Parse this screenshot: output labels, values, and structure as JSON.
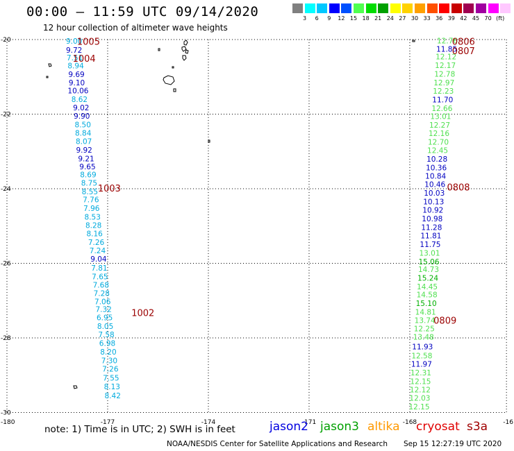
{
  "title": "00:00 – 11:59 UTC 09/14/2020",
  "subtitle": "12 hour collection of altimeter wave heights",
  "legend": {
    "colors": [
      "#808080",
      "#00ffff",
      "#00c8ff",
      "#0000ff",
      "#0050ff",
      "#50ff50",
      "#00dc00",
      "#00a000",
      "#ffff00",
      "#ffd200",
      "#ffa000",
      "#ff5000",
      "#ff0000",
      "#c80000",
      "#a00050",
      "#a000a0",
      "#ff00ff",
      "#ffc8ff"
    ],
    "labels": [
      "3",
      "6",
      "9",
      "12",
      "15",
      "18",
      "21",
      "24",
      "27",
      "30",
      "33",
      "36",
      "39",
      "42",
      "45",
      "70",
      "(ft)"
    ]
  },
  "lat_labels": [
    "-20",
    "-22",
    "-24",
    "-26",
    "-28",
    "-30"
  ],
  "lon_labels": [
    "-180",
    "-177",
    "-174",
    "-171",
    "-168",
    "-16"
  ],
  "tracks": [
    {
      "points": [
        {
          "v": "9.00",
          "lat": -20.04,
          "lon": -178.0,
          "c": "#00aadd"
        },
        {
          "v": "9.72",
          "lat": -20.28,
          "lon": -178.0,
          "c": "#0000c0"
        },
        {
          "v": "7.51",
          "lat": -20.48,
          "lon": -177.98,
          "c": "#00aadd"
        },
        {
          "v": "8.94",
          "lat": -20.7,
          "lon": -177.95,
          "c": "#00aadd"
        },
        {
          "v": "9.69",
          "lat": -20.93,
          "lon": -177.93,
          "c": "#0000c0"
        },
        {
          "v": "9.10",
          "lat": -21.15,
          "lon": -177.92,
          "c": "#0000c0"
        },
        {
          "v": "10.06",
          "lat": -21.37,
          "lon": -177.88,
          "c": "#0000c0"
        },
        {
          "v": "8.62",
          "lat": -21.6,
          "lon": -177.84,
          "c": "#00aadd"
        },
        {
          "v": "9.02",
          "lat": -21.82,
          "lon": -177.79,
          "c": "#0000c0"
        },
        {
          "v": "9.90",
          "lat": -22.05,
          "lon": -177.77,
          "c": "#0000c0"
        },
        {
          "v": "8.50",
          "lat": -22.28,
          "lon": -177.74,
          "c": "#00aadd"
        },
        {
          "v": "8.84",
          "lat": -22.5,
          "lon": -177.73,
          "c": "#00aadd"
        },
        {
          "v": "8.07",
          "lat": -22.73,
          "lon": -177.71,
          "c": "#00aadd"
        },
        {
          "v": "9.92",
          "lat": -22.96,
          "lon": -177.7,
          "c": "#0000c0"
        },
        {
          "v": "9.21",
          "lat": -23.19,
          "lon": -177.64,
          "c": "#0000c0"
        },
        {
          "v": "9.65",
          "lat": -23.4,
          "lon": -177.6,
          "c": "#0000c0"
        },
        {
          "v": "8.69",
          "lat": -23.62,
          "lon": -177.58,
          "c": "#00aadd"
        },
        {
          "v": "8.75",
          "lat": -23.84,
          "lon": -177.55,
          "c": "#00aadd"
        },
        {
          "v": "8.55",
          "lat": -24.07,
          "lon": -177.53,
          "c": "#00aadd"
        },
        {
          "v": "7.76",
          "lat": -24.29,
          "lon": -177.5,
          "c": "#00aadd"
        },
        {
          "v": "7.96",
          "lat": -24.52,
          "lon": -177.48,
          "c": "#00aadd"
        },
        {
          "v": "8.53",
          "lat": -24.75,
          "lon": -177.45,
          "c": "#00aadd"
        },
        {
          "v": "8.28",
          "lat": -24.98,
          "lon": -177.42,
          "c": "#00aadd"
        },
        {
          "v": "8.16",
          "lat": -25.2,
          "lon": -177.39,
          "c": "#00aadd"
        },
        {
          "v": "7.26",
          "lat": -25.43,
          "lon": -177.34,
          "c": "#00aadd"
        },
        {
          "v": "7.24",
          "lat": -25.66,
          "lon": -177.3,
          "c": "#00aadd"
        },
        {
          "v": "9.04",
          "lat": -25.88,
          "lon": -177.27,
          "c": "#0000c0"
        },
        {
          "v": "7.81",
          "lat": -26.12,
          "lon": -177.25,
          "c": "#00aadd"
        },
        {
          "v": "7.65",
          "lat": -26.35,
          "lon": -177.23,
          "c": "#00aadd"
        },
        {
          "v": "7.68",
          "lat": -26.58,
          "lon": -177.2,
          "c": "#00aadd"
        },
        {
          "v": "7.28",
          "lat": -26.8,
          "lon": -177.18,
          "c": "#00aadd"
        },
        {
          "v": "7.06",
          "lat": -27.02,
          "lon": -177.15,
          "c": "#00aadd"
        },
        {
          "v": "7.32",
          "lat": -27.23,
          "lon": -177.12,
          "c": "#00aadd"
        },
        {
          "v": "6.95",
          "lat": -27.45,
          "lon": -177.09,
          "c": "#00aadd"
        },
        {
          "v": "8.05",
          "lat": -27.68,
          "lon": -177.07,
          "c": "#00aadd"
        },
        {
          "v": "7.58",
          "lat": -27.91,
          "lon": -177.04,
          "c": "#00aadd"
        },
        {
          "v": "6.98",
          "lat": -28.14,
          "lon": -177.01,
          "c": "#00aadd"
        },
        {
          "v": "8.20",
          "lat": -28.37,
          "lon": -176.98,
          "c": "#00aadd"
        },
        {
          "v": "7.30",
          "lat": -28.6,
          "lon": -176.95,
          "c": "#00aadd"
        },
        {
          "v": "7.26",
          "lat": -28.83,
          "lon": -176.92,
          "c": "#00aadd"
        },
        {
          "v": "7.55",
          "lat": -29.07,
          "lon": -176.9,
          "c": "#00aadd"
        },
        {
          "v": "8.13",
          "lat": -29.3,
          "lon": -176.87,
          "c": "#00aadd"
        },
        {
          "v": "8.42",
          "lat": -29.54,
          "lon": -176.85,
          "c": "#00aadd"
        }
      ]
    },
    {
      "points": [
        {
          "v": "12.76",
          "lat": -20.03,
          "lon": -166.88,
          "c": "#50e050"
        },
        {
          "v": "11.85",
          "lat": -20.25,
          "lon": -166.9,
          "c": "#0000c0"
        },
        {
          "v": "12.12",
          "lat": -20.46,
          "lon": -166.92,
          "c": "#50e050"
        },
        {
          "v": "12.17",
          "lat": -20.69,
          "lon": -166.94,
          "c": "#50e050"
        },
        {
          "v": "12.78",
          "lat": -20.92,
          "lon": -166.96,
          "c": "#50e050"
        },
        {
          "v": "12.97",
          "lat": -21.15,
          "lon": -166.98,
          "c": "#50e050"
        },
        {
          "v": "12.23",
          "lat": -21.38,
          "lon": -167.0,
          "c": "#50e050"
        },
        {
          "v": "11.70",
          "lat": -21.61,
          "lon": -167.02,
          "c": "#0000c0"
        },
        {
          "v": "12.66",
          "lat": -21.84,
          "lon": -167.04,
          "c": "#50e050"
        },
        {
          "v": "13.01",
          "lat": -22.06,
          "lon": -167.08,
          "c": "#50e050"
        },
        {
          "v": "12.27",
          "lat": -22.29,
          "lon": -167.11,
          "c": "#50e050"
        },
        {
          "v": "12.16",
          "lat": -22.51,
          "lon": -167.13,
          "c": "#50e050"
        },
        {
          "v": "12.70",
          "lat": -22.74,
          "lon": -167.15,
          "c": "#50e050"
        },
        {
          "v": "12.45",
          "lat": -22.97,
          "lon": -167.17,
          "c": "#50e050"
        },
        {
          "v": "10.28",
          "lat": -23.2,
          "lon": -167.19,
          "c": "#0000c0"
        },
        {
          "v": "10.36",
          "lat": -23.43,
          "lon": -167.21,
          "c": "#0000c0"
        },
        {
          "v": "10.84",
          "lat": -23.66,
          "lon": -167.23,
          "c": "#0000c0"
        },
        {
          "v": "10.46",
          "lat": -23.88,
          "lon": -167.25,
          "c": "#0000c0"
        },
        {
          "v": "10.03",
          "lat": -24.11,
          "lon": -167.27,
          "c": "#0000c0"
        },
        {
          "v": "10.13",
          "lat": -24.34,
          "lon": -167.29,
          "c": "#0000c0"
        },
        {
          "v": "10.92",
          "lat": -24.57,
          "lon": -167.31,
          "c": "#0000c0"
        },
        {
          "v": "10.98",
          "lat": -24.8,
          "lon": -167.33,
          "c": "#0000c0"
        },
        {
          "v": "11.28",
          "lat": -25.03,
          "lon": -167.35,
          "c": "#0000c0"
        },
        {
          "v": "11.81",
          "lat": -25.26,
          "lon": -167.37,
          "c": "#0000c0"
        },
        {
          "v": "11.75",
          "lat": -25.49,
          "lon": -167.39,
          "c": "#0000c0"
        },
        {
          "v": "13.01",
          "lat": -25.72,
          "lon": -167.41,
          "c": "#50e050"
        },
        {
          "v": "15.06",
          "lat": -25.95,
          "lon": -167.43,
          "c": "#00b000"
        },
        {
          "v": "14.73",
          "lat": -26.16,
          "lon": -167.44,
          "c": "#50e050"
        },
        {
          "v": "15.24",
          "lat": -26.39,
          "lon": -167.46,
          "c": "#00b000"
        },
        {
          "v": "14.45",
          "lat": -26.62,
          "lon": -167.48,
          "c": "#50e050"
        },
        {
          "v": "14.58",
          "lat": -26.84,
          "lon": -167.49,
          "c": "#50e050"
        },
        {
          "v": "15.10",
          "lat": -27.07,
          "lon": -167.51,
          "c": "#00b000"
        },
        {
          "v": "14.81",
          "lat": -27.3,
          "lon": -167.53,
          "c": "#50e050"
        },
        {
          "v": "13.74",
          "lat": -27.53,
          "lon": -167.55,
          "c": "#50e050"
        },
        {
          "v": "12.25",
          "lat": -27.75,
          "lon": -167.57,
          "c": "#50e050"
        },
        {
          "v": "13.48",
          "lat": -27.97,
          "lon": -167.59,
          "c": "#50e050"
        },
        {
          "v": "11.93",
          "lat": -28.23,
          "lon": -167.62,
          "c": "#0000c0"
        },
        {
          "v": "12.58",
          "lat": -28.47,
          "lon": -167.64,
          "c": "#50e050"
        },
        {
          "v": "11.97",
          "lat": -28.7,
          "lon": -167.65,
          "c": "#0000c0"
        },
        {
          "v": "12.31",
          "lat": -28.93,
          "lon": -167.67,
          "c": "#50e050"
        },
        {
          "v": "12.15",
          "lat": -29.16,
          "lon": -167.68,
          "c": "#50e050"
        },
        {
          "v": "12.12",
          "lat": -29.39,
          "lon": -167.69,
          "c": "#50e050"
        },
        {
          "v": "12.03",
          "lat": -29.61,
          "lon": -167.7,
          "c": "#50e050"
        },
        {
          "v": "12.15",
          "lat": -29.84,
          "lon": -167.72,
          "c": "#50e050"
        }
      ]
    }
  ],
  "pass_labels": [
    {
      "t": "1005",
      "lat": -20.05,
      "lon": -177.57,
      "c": "#9b0000"
    },
    {
      "t": "1004",
      "lat": -20.5,
      "lon": -177.7,
      "c": "#9b0000"
    },
    {
      "t": "1003",
      "lat": -23.98,
      "lon": -176.95,
      "c": "#9b0000"
    },
    {
      "t": "1002",
      "lat": -27.32,
      "lon": -175.95,
      "c": "#9b0000"
    },
    {
      "t": "0806",
      "lat": -20.05,
      "lon": -166.4,
      "c": "#e00000"
    },
    {
      "t": "0807",
      "lat": -20.3,
      "lon": -166.4,
      "c": "#e00000"
    },
    {
      "t": "0808",
      "lat": -23.95,
      "lon": -166.55,
      "c": "#e00000"
    },
    {
      "t": "0809",
      "lat": -27.53,
      "lon": -166.95,
      "c": "#e00000"
    }
  ],
  "note": "note:  1) Time is in UTC;  2) SWH is in feet",
  "satellites": [
    {
      "name": "jason2",
      "color": "#0000e0"
    },
    {
      "name": "jason3",
      "color": "#00a000"
    },
    {
      "name": "altika",
      "color": "#ff9900"
    },
    {
      "name": "cryosat",
      "color": "#e00000"
    },
    {
      "name": "s3a",
      "color": "#a00000"
    }
  ],
  "credit": "NOAA/NESDIS Center for Satellite Applications and Research",
  "timestamp": "Sep 15 12:27:19 UTC 2020"
}
